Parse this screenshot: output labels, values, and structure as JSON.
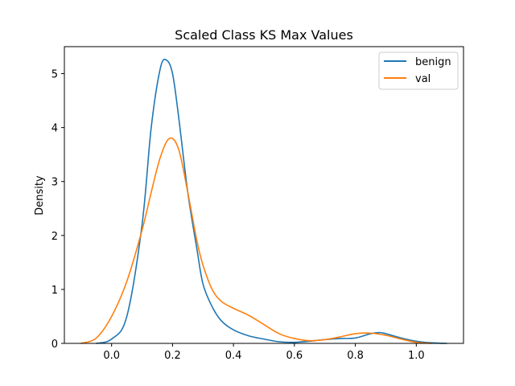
{
  "chart_data": {
    "type": "line",
    "title": "Scaled Class KS Max Values",
    "xlabel": "",
    "ylabel": "Density",
    "xlim": [
      -0.155,
      1.155
    ],
    "ylim": [
      0,
      5.5
    ],
    "xticks": [
      0.0,
      0.2,
      0.4,
      0.6,
      0.8,
      1.0
    ],
    "xtick_labels": [
      "0.0",
      "0.2",
      "0.4",
      "0.6",
      "0.8",
      "1.0"
    ],
    "yticks": [
      0,
      1,
      2,
      3,
      4,
      5
    ],
    "ytick_labels": [
      "0",
      "1",
      "2",
      "3",
      "4",
      "5"
    ],
    "grid": false,
    "legend_position": "top-right",
    "series": [
      {
        "name": "benign",
        "color": "#1f77b4",
        "x": [
          -0.05,
          0.0,
          0.05,
          0.1,
          0.13,
          0.16,
          0.18,
          0.2,
          0.22,
          0.25,
          0.28,
          0.3,
          0.33,
          0.36,
          0.4,
          0.45,
          0.5,
          0.55,
          0.6,
          0.65,
          0.7,
          0.75,
          0.8,
          0.85,
          0.88,
          0.9,
          0.95,
          1.0,
          1.05,
          1.1
        ],
        "y": [
          0.0,
          0.08,
          0.5,
          2.2,
          4.0,
          5.1,
          5.25,
          5.0,
          4.2,
          2.8,
          1.75,
          1.1,
          0.68,
          0.42,
          0.25,
          0.14,
          0.08,
          0.03,
          0.02,
          0.04,
          0.07,
          0.09,
          0.1,
          0.18,
          0.2,
          0.18,
          0.1,
          0.04,
          0.01,
          0.0
        ]
      },
      {
        "name": "val",
        "color": "#ff7f0e",
        "x": [
          -0.1,
          -0.05,
          0.0,
          0.05,
          0.1,
          0.13,
          0.16,
          0.19,
          0.22,
          0.25,
          0.28,
          0.3,
          0.33,
          0.36,
          0.4,
          0.45,
          0.5,
          0.55,
          0.6,
          0.65,
          0.7,
          0.75,
          0.8,
          0.85,
          0.9,
          0.95,
          1.0,
          1.05
        ],
        "y": [
          0.0,
          0.1,
          0.5,
          1.15,
          2.1,
          2.8,
          3.45,
          3.8,
          3.6,
          2.8,
          1.9,
          1.45,
          1.0,
          0.78,
          0.65,
          0.52,
          0.35,
          0.18,
          0.09,
          0.05,
          0.07,
          0.12,
          0.18,
          0.19,
          0.15,
          0.08,
          0.02,
          0.0
        ]
      }
    ]
  }
}
